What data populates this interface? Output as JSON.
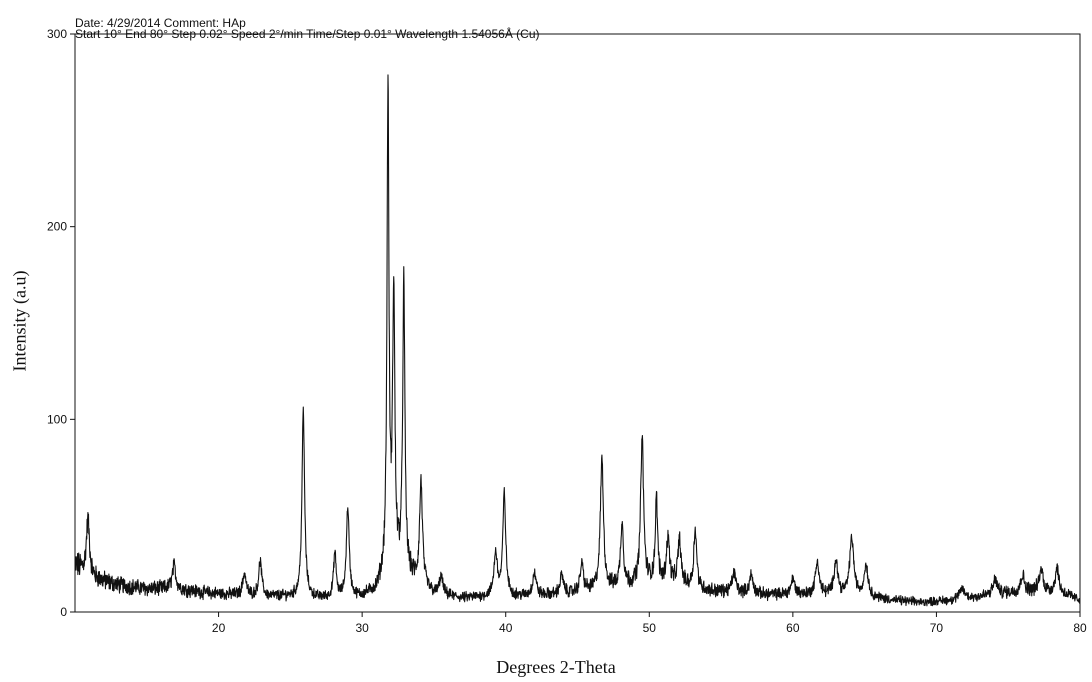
{
  "chart_data": {
    "type": "line",
    "header": {
      "line1": "Date: 4/29/2014   Comment: HAp",
      "line2": "Start 10°  End 80°  Step 0.02°  Speed 2°/min  Time/Step 0.01°  Wavelength 1.54056Å (Cu)"
    },
    "xlabel": "Degrees 2-Theta",
    "ylabel": "Intensity (a.u)",
    "xlim": [
      10,
      80
    ],
    "ylim": [
      0,
      300
    ],
    "x_ticks": [
      20,
      30,
      40,
      50,
      60,
      70,
      80
    ],
    "y_ticks": [
      0,
      100,
      200,
      300
    ],
    "grid": false,
    "legend": "none",
    "line_color": "#111111",
    "background_level": [
      [
        10,
        25
      ],
      [
        11,
        18
      ],
      [
        13,
        14
      ],
      [
        15,
        12
      ],
      [
        17,
        12
      ],
      [
        19,
        10
      ],
      [
        21,
        9
      ],
      [
        23,
        8
      ],
      [
        25,
        8
      ],
      [
        27,
        7
      ],
      [
        29,
        7
      ],
      [
        30,
        8
      ],
      [
        31,
        11
      ],
      [
        32,
        25
      ],
      [
        33,
        20
      ],
      [
        34,
        14
      ],
      [
        35,
        9
      ],
      [
        37,
        7
      ],
      [
        39,
        8
      ],
      [
        41,
        8
      ],
      [
        44,
        9
      ],
      [
        46,
        11
      ],
      [
        48,
        13
      ],
      [
        50,
        15
      ],
      [
        52,
        14
      ],
      [
        54,
        11
      ],
      [
        56,
        10
      ],
      [
        58,
        9
      ],
      [
        60,
        9
      ],
      [
        63,
        9
      ],
      [
        65,
        8
      ],
      [
        67,
        6
      ],
      [
        69,
        5
      ],
      [
        71,
        6
      ],
      [
        73,
        8
      ],
      [
        75,
        10
      ],
      [
        77,
        11
      ],
      [
        79,
        9
      ],
      [
        80,
        6
      ]
    ],
    "peaks": [
      {
        "x": 10.9,
        "y": 48,
        "w": 0.14
      },
      {
        "x": 16.9,
        "y": 24,
        "w": 0.15
      },
      {
        "x": 21.8,
        "y": 20,
        "w": 0.14
      },
      {
        "x": 22.9,
        "y": 26,
        "w": 0.13
      },
      {
        "x": 25.9,
        "y": 104,
        "w": 0.11
      },
      {
        "x": 28.1,
        "y": 30,
        "w": 0.11
      },
      {
        "x": 29.0,
        "y": 54,
        "w": 0.12
      },
      {
        "x": 31.8,
        "y": 270,
        "w": 0.08
      },
      {
        "x": 32.2,
        "y": 165,
        "w": 0.09
      },
      {
        "x": 32.9,
        "y": 170,
        "w": 0.09
      },
      {
        "x": 34.1,
        "y": 67,
        "w": 0.12
      },
      {
        "x": 35.5,
        "y": 18,
        "w": 0.14
      },
      {
        "x": 39.3,
        "y": 30,
        "w": 0.14
      },
      {
        "x": 39.9,
        "y": 61,
        "w": 0.12
      },
      {
        "x": 42.0,
        "y": 20,
        "w": 0.15
      },
      {
        "x": 43.9,
        "y": 19,
        "w": 0.14
      },
      {
        "x": 45.3,
        "y": 25,
        "w": 0.13
      },
      {
        "x": 46.7,
        "y": 79,
        "w": 0.13
      },
      {
        "x": 48.1,
        "y": 46,
        "w": 0.12
      },
      {
        "x": 49.5,
        "y": 91,
        "w": 0.12
      },
      {
        "x": 50.5,
        "y": 58,
        "w": 0.1
      },
      {
        "x": 51.3,
        "y": 38,
        "w": 0.13
      },
      {
        "x": 52.1,
        "y": 37,
        "w": 0.13
      },
      {
        "x": 53.2,
        "y": 43,
        "w": 0.12
      },
      {
        "x": 55.9,
        "y": 20,
        "w": 0.16
      },
      {
        "x": 57.1,
        "y": 19,
        "w": 0.15
      },
      {
        "x": 60.0,
        "y": 17,
        "w": 0.16
      },
      {
        "x": 61.7,
        "y": 26,
        "w": 0.15
      },
      {
        "x": 63.0,
        "y": 27,
        "w": 0.15
      },
      {
        "x": 64.1,
        "y": 38,
        "w": 0.17
      },
      {
        "x": 65.1,
        "y": 24,
        "w": 0.16
      },
      {
        "x": 71.8,
        "y": 12,
        "w": 0.2
      },
      {
        "x": 74.1,
        "y": 17,
        "w": 0.17
      },
      {
        "x": 76.0,
        "y": 19,
        "w": 0.16
      },
      {
        "x": 77.3,
        "y": 22,
        "w": 0.16
      },
      {
        "x": 78.4,
        "y": 23,
        "w": 0.15
      }
    ],
    "step": 0.02
  }
}
